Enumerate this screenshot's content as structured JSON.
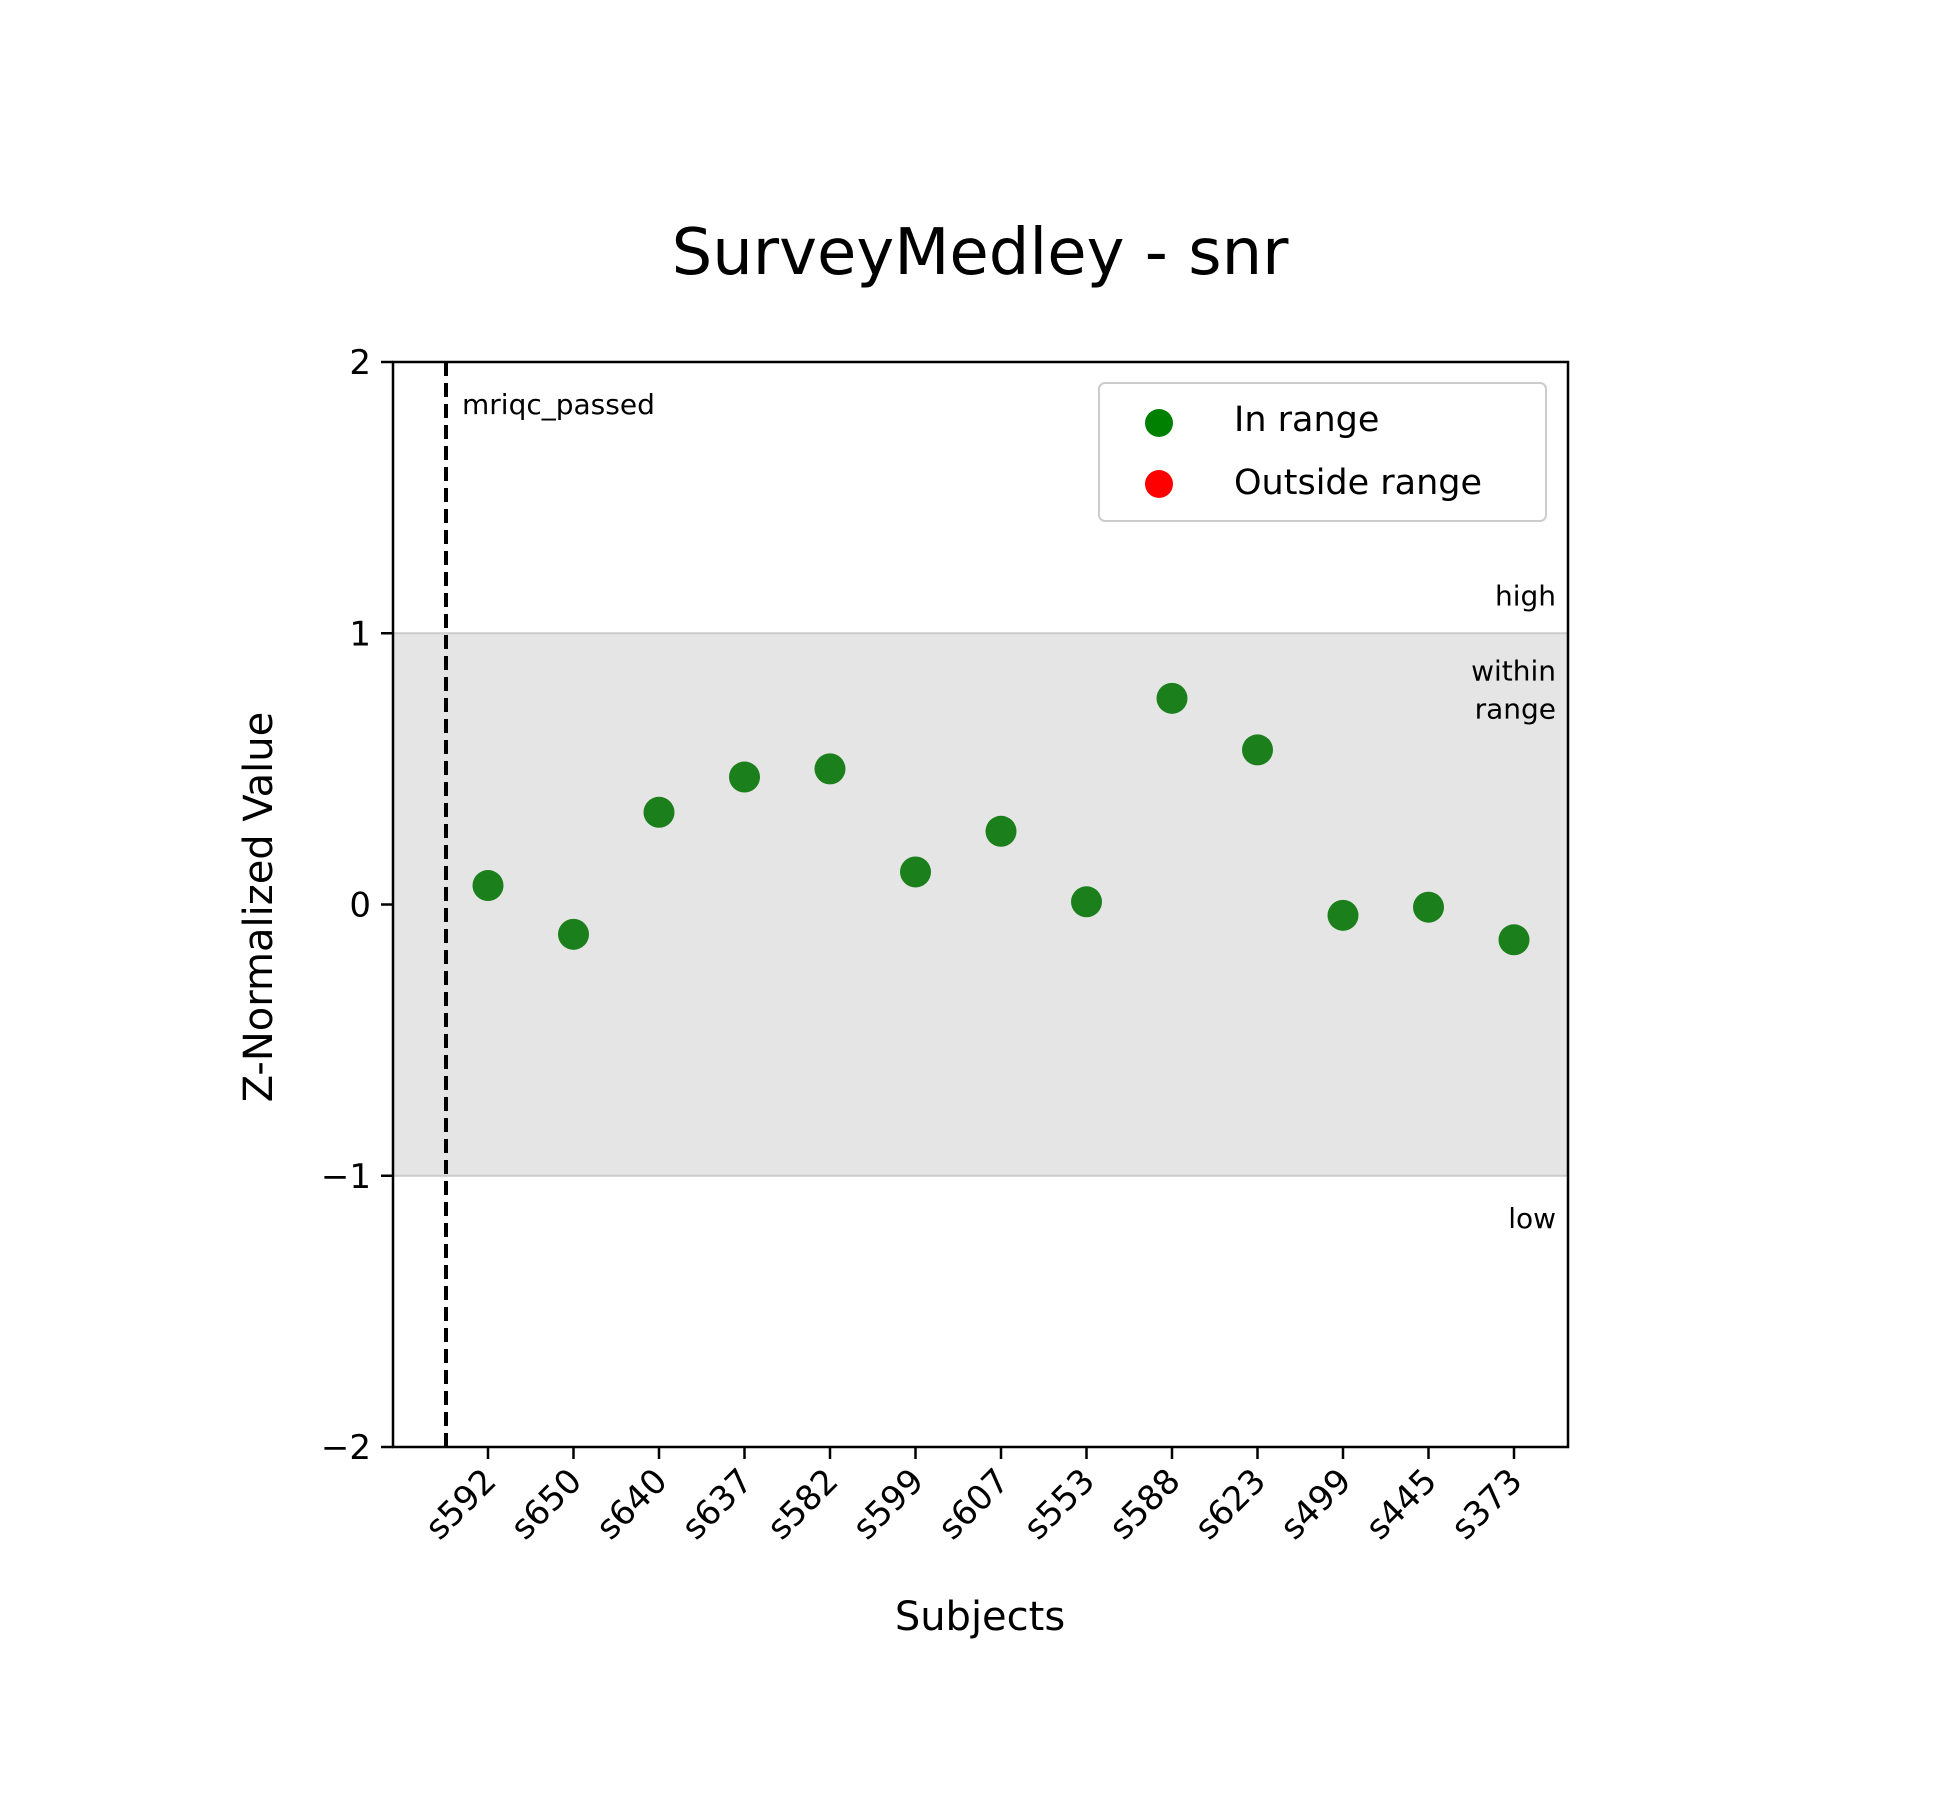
{
  "chart_data": {
    "type": "scatter",
    "title": "SurveyMedley - snr",
    "xlabel": "Subjects",
    "ylabel": "Z-Normalized Value",
    "ylim": [
      -2,
      2
    ],
    "yticks": [
      {
        "value": 2,
        "label": "2"
      },
      {
        "value": 1,
        "label": "1"
      },
      {
        "value": 0,
        "label": "0"
      },
      {
        "value": -1,
        "label": "−1"
      },
      {
        "value": -2,
        "label": "−2"
      }
    ],
    "categories": [
      "s592",
      "s650",
      "s640",
      "s637",
      "s582",
      "s599",
      "s607",
      "s553",
      "s588",
      "s623",
      "s499",
      "s445",
      "s373"
    ],
    "values": [
      0.07,
      -0.11,
      0.34,
      0.47,
      0.5,
      0.12,
      0.27,
      0.01,
      0.76,
      0.57,
      -0.04,
      -0.01,
      -0.13
    ],
    "range_band": {
      "low": -1,
      "high": 1,
      "color": "#e5e5e5"
    },
    "region_labels": {
      "high": "high",
      "within": [
        "within",
        "range"
      ],
      "low": "low"
    },
    "vline": {
      "label": "mriqc_passed",
      "position": "before first subject",
      "style": "dashed"
    },
    "legend": {
      "placement": "top-right",
      "entries": [
        {
          "label": "In range",
          "color": "#008000"
        },
        {
          "label": "Outside range",
          "color": "#ff0000"
        }
      ]
    },
    "point_color": "#1b7f1b",
    "grid": false
  }
}
